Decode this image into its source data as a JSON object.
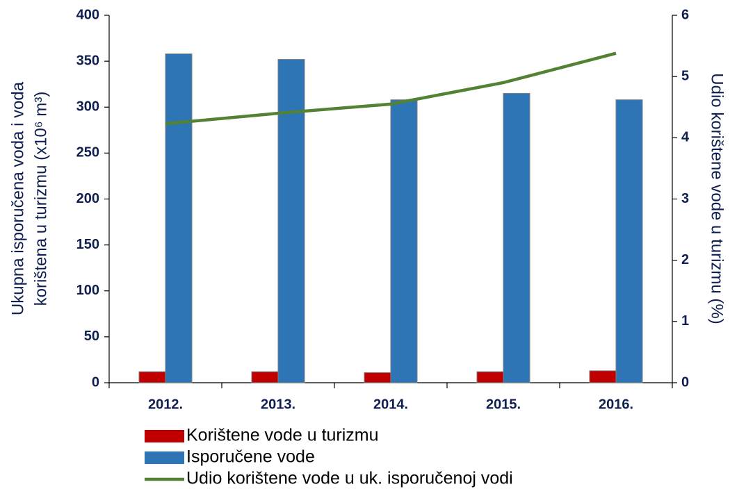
{
  "chart_data": {
    "type": "bar",
    "categories": [
      "2012.",
      "2013.",
      "2014.",
      "2015.",
      "2016."
    ],
    "series": [
      {
        "name": "Korištene vode u turizmu",
        "color": "#c00000",
        "type": "bar",
        "values": [
          12,
          12,
          11,
          12,
          13
        ]
      },
      {
        "name": "Isporučene vode",
        "color": "#2e75b6",
        "type": "bar",
        "values": [
          358,
          352,
          308,
          315,
          308
        ]
      },
      {
        "name": "Udio korištene vode u uk. isporučenoj vodi",
        "color": "#548235",
        "type": "line",
        "axis": "y2",
        "values": [
          4.23,
          4.4,
          4.55,
          4.9,
          5.38
        ]
      }
    ],
    "y_label": [
      "Ukupna isporučena voda  i voda",
      "korištena u turizmu (x10⁶ m³)"
    ],
    "y2_label": "Udio korištene vode u turizmu (%)",
    "ylim": [
      0,
      400
    ],
    "yticks": [
      0,
      50,
      100,
      150,
      200,
      250,
      300,
      350,
      400
    ],
    "y2lim": [
      0,
      6
    ],
    "y2ticks": [
      0,
      1,
      2,
      3,
      4,
      5,
      6
    ],
    "grid": false,
    "legend": "bottom"
  }
}
